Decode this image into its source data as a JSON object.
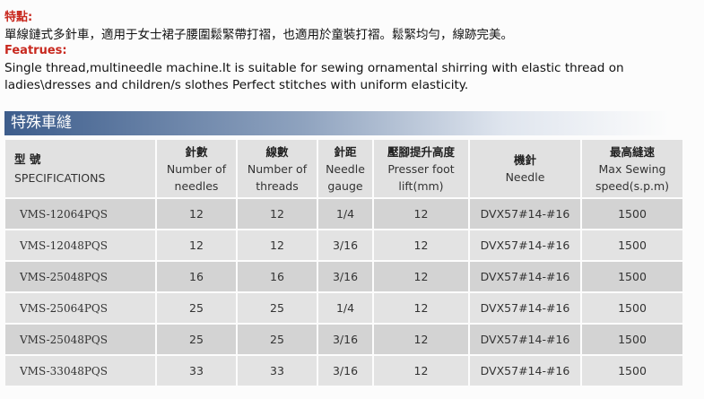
{
  "features_zh": {
    "title": "特點:",
    "text": "單線鏈式多針車，適用于女士裙子腰圍鬆緊帶打褶，也適用於童裝打褶。鬆緊均勻，線跡完美。"
  },
  "features_en": {
    "title": "Featrues:",
    "line1": "Single thread,multineedle machine.It is suitable for sewing ornamental shirring with elastic thread on",
    "line2": "ladies\\dresses and children/s slothes Perfect stitches with uniform elasticity."
  },
  "banner": "特殊車縫",
  "table": {
    "headers": [
      {
        "zh": "型  號",
        "en": "SPECIFICATIONS"
      },
      {
        "zh": "針數",
        "en": "Number of needles"
      },
      {
        "zh": "線數",
        "en": "Number of threads"
      },
      {
        "zh": "針距",
        "en": "Needle gauge"
      },
      {
        "zh": "壓腳提升高度",
        "en": "Presser foot lift(mm)"
      },
      {
        "zh": "機針",
        "en": "Needle"
      },
      {
        "zh": "最高縫速",
        "en": "Max Sewing speed(s.p.m)"
      }
    ],
    "rows": [
      [
        "VMS-12064PQS",
        "12",
        "12",
        "1/4",
        "12",
        "DVX57#14-#16",
        "1500"
      ],
      [
        "VMS-12048PQS",
        "12",
        "12",
        "3/16",
        "12",
        "DVX57#14-#16",
        "1500"
      ],
      [
        "VMS-25048PQS",
        "16",
        "16",
        "3/16",
        "12",
        "DVX57#14-#16",
        "1500"
      ],
      [
        "VMS-25064PQS",
        "25",
        "25",
        "1/4",
        "12",
        "DVX57#14-#16",
        "1500"
      ],
      [
        "VMS-25048PQS",
        "25",
        "25",
        "3/16",
        "12",
        "DVX57#14-#16",
        "1500"
      ],
      [
        "VMS-33048PQS",
        "33",
        "33",
        "3/16",
        "12",
        "DVX57#14-#16",
        "1500"
      ]
    ]
  }
}
